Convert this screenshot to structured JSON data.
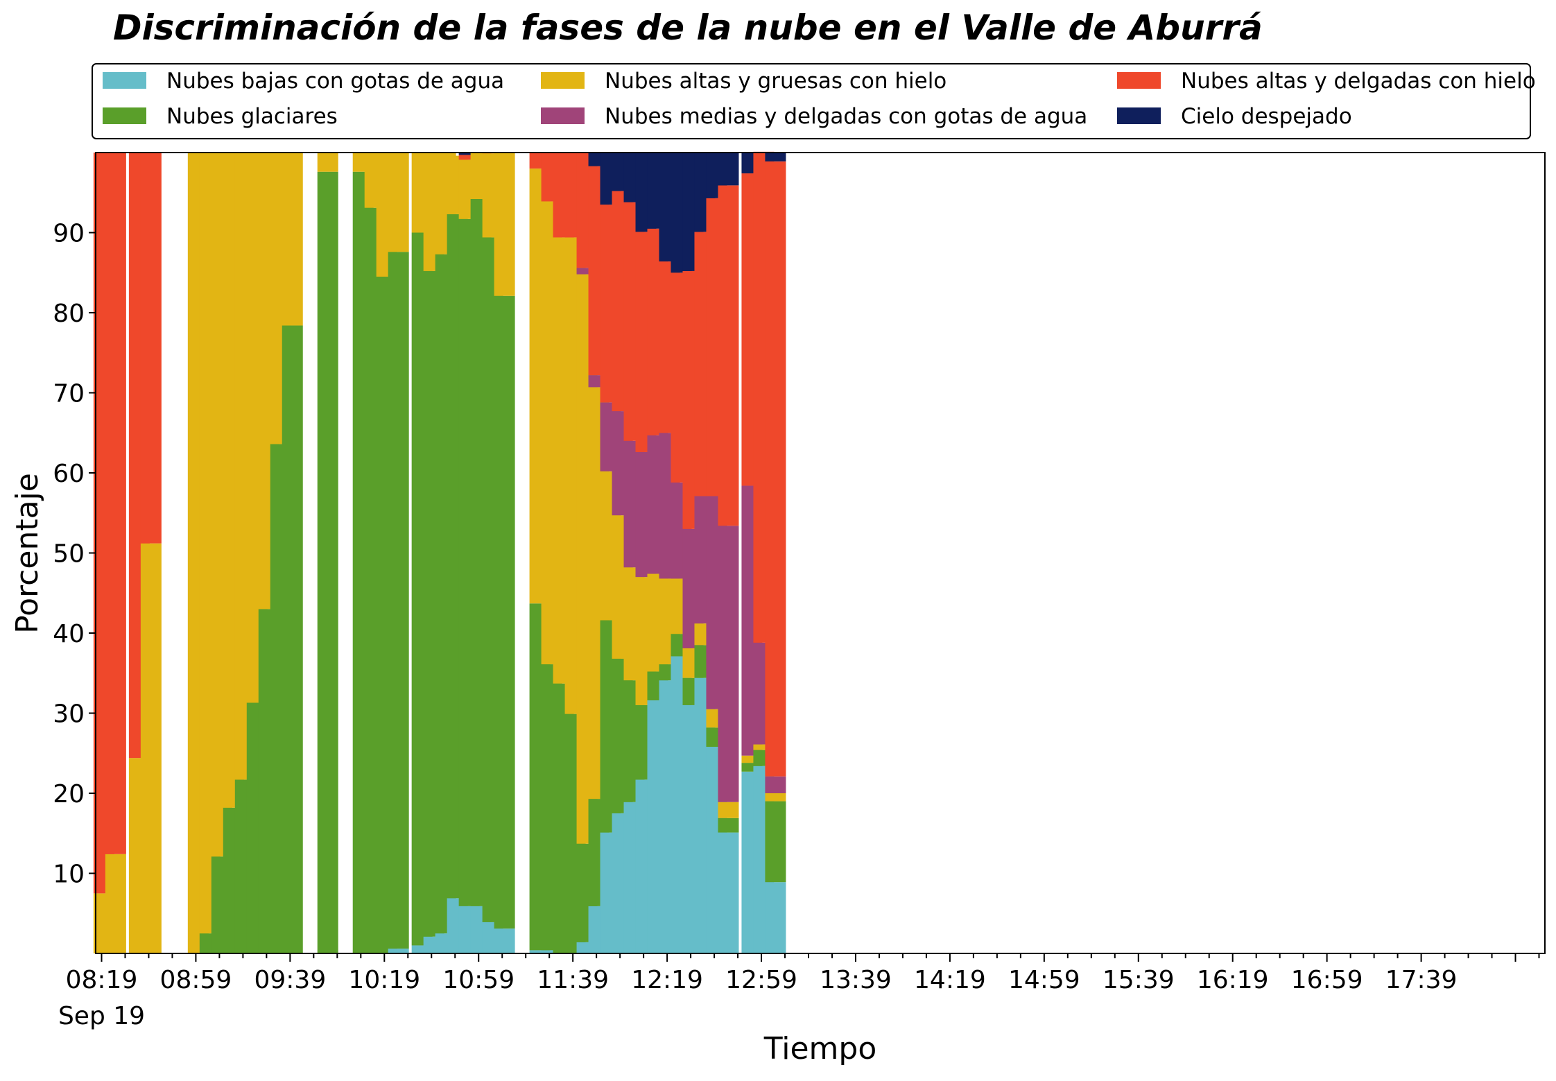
{
  "chart_data": {
    "type": "bar",
    "stacked": true,
    "title": "Discriminación de la fases de la nube en el Valle de Aburrá",
    "xlabel": "Tiempo",
    "ylabel": "Porcentaje",
    "ylim": [
      0,
      100
    ],
    "y_ticks": [
      10,
      20,
      30,
      40,
      50,
      60,
      70,
      80,
      90
    ],
    "x_tick_labels": [
      "08:19",
      "08:59",
      "09:39",
      "10:19",
      "10:59",
      "11:39",
      "12:19",
      "12:59",
      "13:39",
      "14:19",
      "14:59",
      "15:39",
      "16:19",
      "16:59",
      "17:39"
    ],
    "x_tick_sublabel": "Sep 19",
    "grid": false,
    "legend_position": "top, between title and plot, 3 columns",
    "legend": [
      {
        "name": "Nubes bajas con gotas de agua",
        "color": "#65bdc9"
      },
      {
        "name": "Nubes altas y gruesas con hielo",
        "color": "#e2b514"
      },
      {
        "name": "Nubes altas y delgadas con hielo",
        "color": "#ef482b"
      },
      {
        "name": "Nubes glaciares",
        "color": "#5a9f2a"
      },
      {
        "name": "Nubes medias y delgadas con gotas de agua",
        "color": "#a04479"
      },
      {
        "name": "Cielo despejado",
        "color": "#0f1f5c"
      }
    ],
    "series_order_bottom_to_top": [
      "Nubes bajas con gotas de agua",
      "Nubes glaciares",
      "Nubes altas y gruesas con hielo",
      "Nubes medias y delgadas con gotas de agua",
      "Nubes altas y delgadas con hielo",
      "Cielo despejado"
    ],
    "x": [
      "08:19",
      "08:24",
      "08:29",
      "08:34",
      "08:39",
      "08:44",
      "08:49",
      "08:54",
      "08:59",
      "09:04",
      "09:09",
      "09:14",
      "09:19",
      "09:24",
      "09:29",
      "09:34",
      "09:39",
      "09:44",
      "09:49",
      "09:54",
      "09:59",
      "10:04",
      "10:09",
      "10:14",
      "10:19",
      "10:24",
      "10:29",
      "10:34",
      "10:39",
      "10:44",
      "10:49",
      "10:54",
      "10:59",
      "11:04",
      "11:09",
      "11:14",
      "11:19",
      "11:24",
      "11:29",
      "11:34",
      "11:39",
      "11:44",
      "11:49",
      "11:54",
      "11:59",
      "12:04",
      "12:09",
      "12:14",
      "12:19",
      "12:24",
      "12:29",
      "12:34",
      "12:39",
      "12:44",
      "12:49",
      "12:54",
      "12:59",
      "13:04",
      "13:09",
      "13:14",
      "13:19",
      "13:24",
      "13:29",
      "13:34",
      "13:39",
      "13:44",
      "13:49",
      "13:54",
      "13:59",
      "14:04",
      "14:09",
      "14:14",
      "14:19",
      "14:24",
      "14:29",
      "14:34",
      "14:39",
      "14:44",
      "14:49",
      "14:54",
      "14:59",
      "15:04",
      "15:09",
      "15:14",
      "15:19",
      "15:24",
      "15:29",
      "15:34",
      "15:39",
      "15:44",
      "15:49",
      "15:54",
      "15:59",
      "16:04",
      "16:09",
      "16:14",
      "16:19",
      "16:24",
      "16:29",
      "16:34",
      "16:39",
      "16:44",
      "16:49",
      "16:54",
      "16:59",
      "17:04",
      "17:09",
      "17:14",
      "17:19",
      "17:24",
      "17:29",
      "17:34",
      "17:39",
      "17:44",
      "17:49",
      "17:54",
      "17:59",
      "18:04",
      "18:09",
      "18:14",
      "18:19",
      "18:24",
      "18:29"
    ],
    "bars": [
      {
        "time": "08:20",
        "values": [
          0,
          0,
          7.5,
          0,
          92.5,
          0
        ]
      },
      {
        "time": "08:25",
        "values": [
          0,
          0,
          12.4,
          0,
          87.6,
          0
        ]
      },
      {
        "time": "08:35",
        "values": [
          0,
          0,
          24.4,
          0,
          75.6,
          0
        ]
      },
      {
        "time": "08:40",
        "values": [
          0,
          0,
          51.2,
          0,
          48.8,
          0
        ]
      },
      {
        "time": "09:00",
        "values": [
          0,
          0,
          100,
          0,
          0,
          0
        ]
      },
      {
        "time": "09:05",
        "values": [
          0,
          2.5,
          97.5,
          0,
          0,
          0
        ]
      },
      {
        "time": "09:10",
        "values": [
          0,
          12.1,
          87.9,
          0,
          0,
          0
        ]
      },
      {
        "time": "09:15",
        "values": [
          0,
          18.2,
          81.8,
          0,
          0,
          0
        ]
      },
      {
        "time": "09:20",
        "values": [
          0,
          21.7,
          78.3,
          0,
          0,
          0
        ]
      },
      {
        "time": "09:25",
        "values": [
          0,
          31.3,
          68.7,
          0,
          0,
          0
        ]
      },
      {
        "time": "09:30",
        "values": [
          0,
          43.0,
          57.0,
          0,
          0,
          0
        ]
      },
      {
        "time": "09:35",
        "values": [
          0,
          63.6,
          36.4,
          0,
          0,
          0
        ]
      },
      {
        "time": "09:40",
        "values": [
          0,
          78.4,
          21.6,
          0,
          0,
          0
        ]
      },
      {
        "time": "09:55",
        "values": [
          0,
          97.6,
          2.4,
          0,
          0,
          0
        ]
      },
      {
        "time": "10:10",
        "values": [
          0,
          97.6,
          2.4,
          0,
          0,
          0
        ]
      },
      {
        "time": "10:15",
        "values": [
          0,
          93.1,
          6.9,
          0,
          0,
          0
        ]
      },
      {
        "time": "10:20",
        "values": [
          0,
          84.5,
          15.5,
          0,
          0,
          0
        ]
      },
      {
        "time": "10:25",
        "values": [
          0.6,
          87.0,
          12.4,
          0,
          0,
          0
        ]
      },
      {
        "time": "10:35",
        "values": [
          1.0,
          89.0,
          10.0,
          0,
          0,
          0
        ]
      },
      {
        "time": "10:40",
        "values": [
          2.1,
          83.1,
          14.8,
          0,
          0,
          0
        ]
      },
      {
        "time": "10:45",
        "values": [
          2.5,
          84.8,
          12.7,
          0,
          0,
          0
        ]
      },
      {
        "time": "10:50",
        "values": [
          6.9,
          85.4,
          7.3,
          0,
          0,
          0
        ]
      },
      {
        "time": "10:55",
        "values": [
          5.9,
          85.8,
          7.4,
          0,
          0.6,
          0.3
        ]
      },
      {
        "time": "11:00",
        "values": [
          5.9,
          88.3,
          5.8,
          0,
          0,
          0
        ]
      },
      {
        "time": "11:05",
        "values": [
          3.9,
          85.5,
          10.5,
          0,
          0.1,
          0
        ]
      },
      {
        "time": "11:10",
        "values": [
          3.1,
          79.0,
          17.9,
          0,
          0,
          0
        ]
      },
      {
        "time": "11:25",
        "values": [
          0.4,
          43.3,
          54.3,
          0,
          2.0,
          0
        ]
      },
      {
        "time": "11:30",
        "values": [
          0.4,
          35.7,
          57.8,
          0,
          6.1,
          0
        ]
      },
      {
        "time": "11:35",
        "values": [
          0,
          33.7,
          55.7,
          0,
          10.6,
          0
        ]
      },
      {
        "time": "11:40",
        "values": [
          0,
          29.9,
          59.5,
          0,
          10.6,
          0
        ]
      },
      {
        "time": "11:45",
        "values": [
          1.4,
          12.3,
          71.1,
          0.8,
          14.4,
          0
        ]
      },
      {
        "time": "11:50",
        "values": [
          5.9,
          13.4,
          51.4,
          1.5,
          26.1,
          1.7
        ]
      },
      {
        "time": "11:55",
        "values": [
          15.1,
          26.5,
          18.6,
          8.6,
          24.7,
          6.5
        ]
      },
      {
        "time": "12:00",
        "values": [
          17.5,
          19.3,
          17.9,
          13.0,
          27.5,
          4.8
        ]
      },
      {
        "time": "12:05",
        "values": [
          18.9,
          15.2,
          14.1,
          15.8,
          29.8,
          6.2
        ]
      },
      {
        "time": "12:10",
        "values": [
          21.7,
          9.3,
          16.0,
          15.6,
          27.5,
          9.9
        ]
      },
      {
        "time": "12:15",
        "values": [
          31.6,
          3.6,
          12.2,
          17.3,
          25.8,
          9.5
        ]
      },
      {
        "time": "12:20",
        "values": [
          34.1,
          2.0,
          10.7,
          18.2,
          21.4,
          13.6
        ]
      },
      {
        "time": "12:25",
        "values": [
          37.1,
          2.8,
          6.9,
          12.0,
          26.2,
          15.0
        ]
      },
      {
        "time": "12:30",
        "values": [
          31.0,
          3.4,
          3.7,
          14.9,
          32.2,
          14.8
        ]
      },
      {
        "time": "12:35",
        "values": [
          34.4,
          4.1,
          2.7,
          15.9,
          33.0,
          9.9
        ]
      },
      {
        "time": "12:40",
        "values": [
          25.8,
          2.4,
          2.3,
          26.6,
          37.2,
          5.7
        ]
      },
      {
        "time": "12:45",
        "values": [
          15.1,
          1.8,
          2.0,
          34.5,
          42.5,
          4.1
        ]
      },
      {
        "time": "12:55",
        "values": [
          22.7,
          1.1,
          0.9,
          33.7,
          39.0,
          2.6
        ]
      },
      {
        "time": "13:00",
        "values": [
          23.4,
          2.0,
          0.7,
          12.7,
          61.3,
          0
        ]
      },
      {
        "time": "13:05",
        "values": [
          8.9,
          10.1,
          1.0,
          2.1,
          76.8,
          1.1
        ]
      }
    ]
  }
}
